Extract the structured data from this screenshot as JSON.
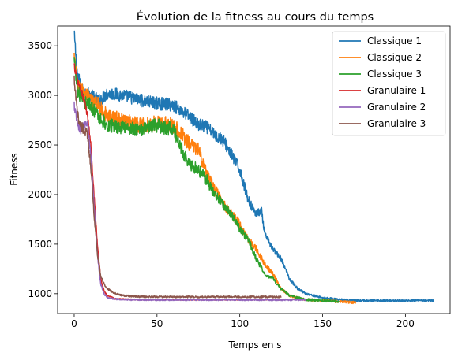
{
  "chart_data": {
    "type": "line",
    "title": "Évolution de la fitness au cours du temps",
    "xlabel": "Temps en s",
    "ylabel": "Fitness",
    "xlim": [
      -10,
      227
    ],
    "ylim": [
      800,
      3700
    ],
    "xticks": [
      "0",
      "50",
      "100",
      "150",
      "200"
    ],
    "xtick_values": [
      0,
      50,
      100,
      150,
      200
    ],
    "yticks": [
      "1000",
      "1500",
      "2000",
      "2500",
      "3000",
      "3500"
    ],
    "ytick_values": [
      1000,
      1500,
      2000,
      2500,
      3000,
      3500
    ],
    "grid": false,
    "legend_position": "top-right",
    "series": [
      {
        "name": "Classique 1",
        "color": "#1f77b4",
        "x": [
          0,
          2,
          5,
          10,
          15,
          20,
          30,
          40,
          50,
          60,
          70,
          75,
          80,
          85,
          90,
          95,
          100,
          105,
          110,
          113,
          115,
          120,
          125,
          130,
          135,
          140,
          150,
          160,
          170,
          180,
          200,
          217
        ],
        "y": [
          3620,
          3200,
          3050,
          3000,
          2950,
          3020,
          3000,
          2950,
          2920,
          2900,
          2780,
          2700,
          2680,
          2600,
          2550,
          2400,
          2250,
          1950,
          1800,
          1850,
          1600,
          1450,
          1350,
          1150,
          1050,
          1000,
          960,
          940,
          930,
          930,
          930,
          930
        ],
        "noise": 55
      },
      {
        "name": "Classique 2",
        "color": "#ff7f0e",
        "x": [
          0,
          2,
          5,
          10,
          15,
          20,
          30,
          40,
          50,
          60,
          65,
          70,
          75,
          80,
          85,
          90,
          95,
          100,
          105,
          110,
          115,
          120,
          125,
          130,
          140,
          150,
          160,
          170
        ],
        "y": [
          3400,
          3100,
          3050,
          2950,
          2900,
          2780,
          2750,
          2700,
          2720,
          2700,
          2600,
          2500,
          2450,
          2200,
          2050,
          1900,
          1800,
          1700,
          1550,
          1450,
          1300,
          1200,
          1050,
          980,
          940,
          930,
          920,
          910
        ],
        "noise": 65
      },
      {
        "name": "Classique 3",
        "color": "#2ca02c",
        "x": [
          0,
          2,
          5,
          10,
          15,
          20,
          30,
          40,
          50,
          60,
          65,
          70,
          75,
          80,
          85,
          90,
          95,
          100,
          105,
          110,
          115,
          120,
          125,
          130,
          140,
          150,
          160
        ],
        "y": [
          3350,
          3050,
          2950,
          2900,
          2780,
          2700,
          2680,
          2650,
          2700,
          2650,
          2450,
          2300,
          2250,
          2150,
          2000,
          1900,
          1800,
          1650,
          1550,
          1350,
          1200,
          1150,
          1050,
          980,
          940,
          930,
          920
        ],
        "noise": 60
      },
      {
        "name": "Granulaire 1",
        "color": "#d62728",
        "x": [
          0,
          2,
          4,
          6,
          8,
          10,
          12,
          14,
          16,
          18,
          20,
          25,
          30,
          40,
          60,
          80,
          100,
          125
        ],
        "y": [
          3300,
          3150,
          3050,
          2950,
          2800,
          2500,
          2000,
          1500,
          1150,
          1030,
          980,
          950,
          945,
          940,
          940,
          940,
          940,
          940
        ],
        "noise": 30
      },
      {
        "name": "Granulaire 2",
        "color": "#9467bd",
        "x": [
          0,
          2,
          4,
          6,
          8,
          10,
          12,
          14,
          16,
          18,
          20,
          25,
          30,
          40,
          60,
          80,
          100,
          120,
          140
        ],
        "y": [
          2900,
          2700,
          2650,
          2700,
          2750,
          2400,
          1900,
          1400,
          1100,
          1000,
          960,
          945,
          940,
          938,
          938,
          938,
          938,
          938,
          938
        ],
        "noise": 40
      },
      {
        "name": "Granulaire 3",
        "color": "#8c564b",
        "x": [
          0,
          2,
          4,
          6,
          8,
          10,
          12,
          14,
          16,
          18,
          20,
          25,
          30,
          40,
          60,
          80,
          100,
          125
        ],
        "y": [
          3150,
          2800,
          2700,
          2650,
          2600,
          2300,
          1800,
          1400,
          1180,
          1100,
          1050,
          1000,
          980,
          970,
          968,
          968,
          968,
          968
        ],
        "noise": 45
      }
    ]
  }
}
